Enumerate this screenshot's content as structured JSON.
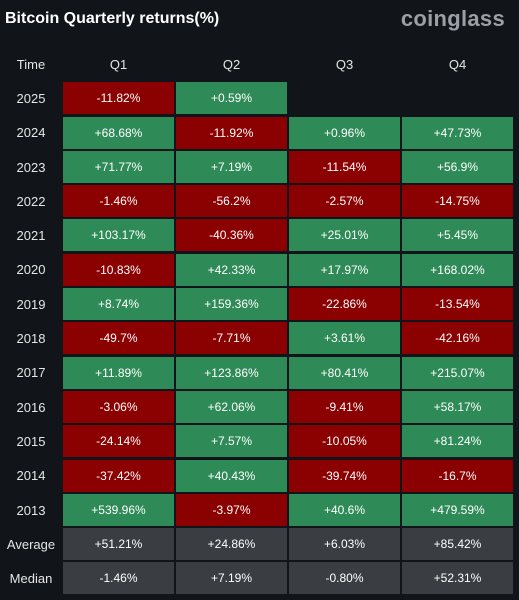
{
  "title": "Bitcoin Quarterly returns(%)",
  "brand": "coinglass",
  "colors": {
    "positive": "#2e8b57",
    "negative": "#8b0000",
    "summary": "#3a3d42"
  },
  "chart_data": {
    "type": "table",
    "corner_label": "Time",
    "columns": [
      "Q1",
      "Q2",
      "Q3",
      "Q4"
    ],
    "rows": [
      {
        "label": "2025",
        "values": [
          "-11.82%",
          "+0.59%",
          "",
          ""
        ]
      },
      {
        "label": "2024",
        "values": [
          "+68.68%",
          "-11.92%",
          "+0.96%",
          "+47.73%"
        ]
      },
      {
        "label": "2023",
        "values": [
          "+71.77%",
          "+7.19%",
          "-11.54%",
          "+56.9%"
        ]
      },
      {
        "label": "2022",
        "values": [
          "-1.46%",
          "-56.2%",
          "-2.57%",
          "-14.75%"
        ]
      },
      {
        "label": "2021",
        "values": [
          "+103.17%",
          "-40.36%",
          "+25.01%",
          "+5.45%"
        ]
      },
      {
        "label": "2020",
        "values": [
          "-10.83%",
          "+42.33%",
          "+17.97%",
          "+168.02%"
        ]
      },
      {
        "label": "2019",
        "values": [
          "+8.74%",
          "+159.36%",
          "-22.86%",
          "-13.54%"
        ]
      },
      {
        "label": "2018",
        "values": [
          "-49.7%",
          "-7.71%",
          "+3.61%",
          "-42.16%"
        ]
      },
      {
        "label": "2017",
        "values": [
          "+11.89%",
          "+123.86%",
          "+80.41%",
          "+215.07%"
        ]
      },
      {
        "label": "2016",
        "values": [
          "-3.06%",
          "+62.06%",
          "-9.41%",
          "+58.17%"
        ]
      },
      {
        "label": "2015",
        "values": [
          "-24.14%",
          "+7.57%",
          "-10.05%",
          "+81.24%"
        ]
      },
      {
        "label": "2014",
        "values": [
          "-37.42%",
          "+40.43%",
          "-39.74%",
          "-16.7%"
        ]
      },
      {
        "label": "2013",
        "values": [
          "+539.96%",
          "-3.97%",
          "+40.6%",
          "+479.59%"
        ]
      }
    ],
    "summary_rows": [
      {
        "label": "Average",
        "values": [
          "+51.21%",
          "+24.86%",
          "+6.03%",
          "+85.42%"
        ]
      },
      {
        "label": "Median",
        "values": [
          "-1.46%",
          "+7.19%",
          "-0.80%",
          "+52.31%"
        ]
      }
    ]
  }
}
